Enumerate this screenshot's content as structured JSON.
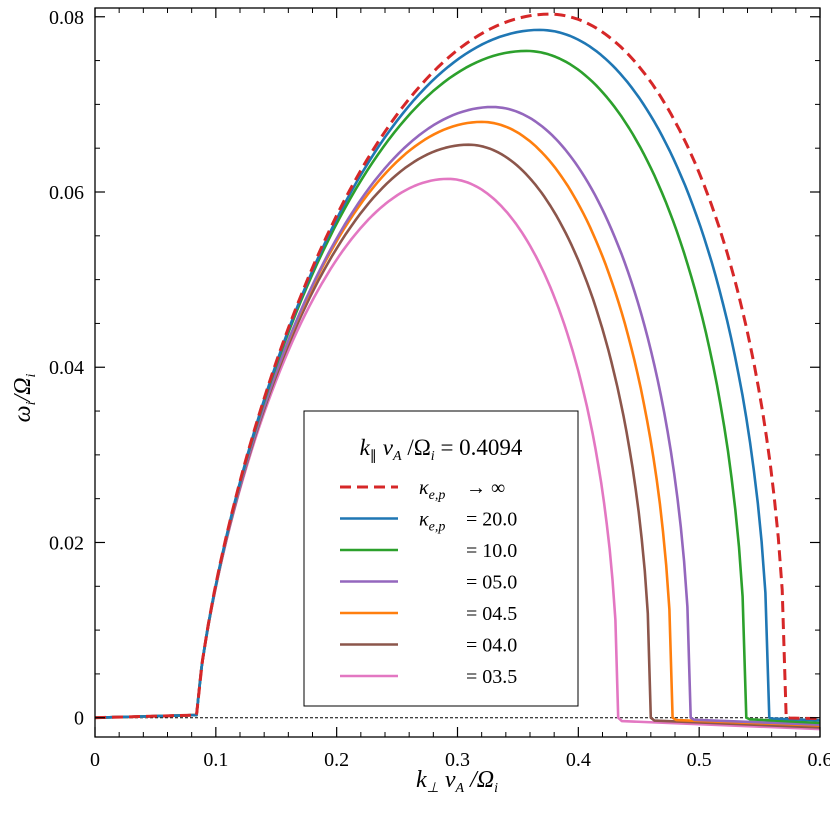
{
  "chart_data": {
    "type": "line",
    "xlabel": "k⊥ vA/Ωi",
    "ylabel": "ωi/Ωi",
    "xlim": [
      0,
      0.6
    ],
    "ylim": [
      -0.0022,
      0.081
    ],
    "xticks": [
      0,
      0.1,
      0.2,
      0.3,
      0.4,
      0.5,
      0.6
    ],
    "xtick_labels": [
      "0",
      "0.1",
      "0.2",
      "0.3",
      "0.4",
      "0.5",
      "0.6"
    ],
    "yticks": [
      0,
      0.02,
      0.04,
      0.06,
      0.08
    ],
    "ytick_labels": [
      "0",
      "0.02",
      "0.04",
      "0.06",
      "0.08"
    ],
    "grid": false,
    "legend_position": "lower-center",
    "legend_title": "k∥ vA/Ωi = 0.4094",
    "reference_line": {
      "y": 0,
      "style": "dashed",
      "color": "#000000"
    },
    "onset_x": 0.084,
    "onset_y": 0.0003,
    "series": [
      {
        "name": "κe,p → ∞",
        "label_lhs": "κe,p",
        "label_rhs": "→ ∞",
        "color": "#d62728",
        "dash": true,
        "peak_x": 0.376,
        "peak_y": 0.0803,
        "cutoff_x": 0.572,
        "tail_y": -0.0001
      },
      {
        "name": "κe,p = 20.0",
        "label_lhs": "κe,p",
        "label_rhs": "= 20.0",
        "color": "#1f77b4",
        "dash": false,
        "peak_x": 0.368,
        "peak_y": 0.0785,
        "cutoff_x": 0.558,
        "tail_y": -0.0003
      },
      {
        "name": "κe,p = 10.0",
        "label_lhs": "",
        "label_rhs": "= 10.0",
        "color": "#2ca02c",
        "dash": false,
        "peak_x": 0.357,
        "peak_y": 0.0761,
        "cutoff_x": 0.539,
        "tail_y": -0.0006
      },
      {
        "name": "κe,p = 05.0",
        "label_lhs": "",
        "label_rhs": "= 05.0",
        "color": "#9467bd",
        "dash": false,
        "peak_x": 0.329,
        "peak_y": 0.0697,
        "cutoff_x": 0.493,
        "tail_y": -0.0008
      },
      {
        "name": "κe,p = 04.5",
        "label_lhs": "",
        "label_rhs": "= 04.5",
        "color": "#ff7f0e",
        "dash": false,
        "peak_x": 0.32,
        "peak_y": 0.068,
        "cutoff_x": 0.478,
        "tail_y": -0.0009
      },
      {
        "name": "κe,p = 04.0",
        "label_lhs": "",
        "label_rhs": "= 04.0",
        "color": "#8c564b",
        "dash": false,
        "peak_x": 0.309,
        "peak_y": 0.0654,
        "cutoff_x": 0.46,
        "tail_y": -0.0011
      },
      {
        "name": "κe,p = 03.5",
        "label_lhs": "",
        "label_rhs": "= 03.5",
        "color": "#e377c2",
        "dash": false,
        "peak_x": 0.292,
        "peak_y": 0.0615,
        "cutoff_x": 0.433,
        "tail_y": -0.0013
      }
    ]
  }
}
